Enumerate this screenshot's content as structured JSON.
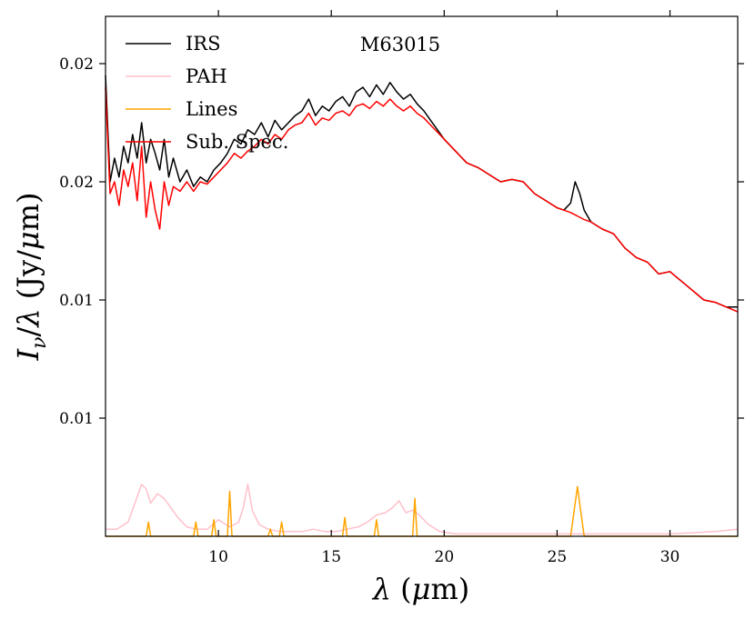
{
  "chart_data": {
    "type": "line",
    "title": "M63015",
    "xlabel": "λ (μm)",
    "ylabel": "Iν/λ (Jy/μm)",
    "xlim": [
      5.0,
      33.0
    ],
    "ylim": [
      0.0,
      0.022
    ],
    "x_ticks": [
      10,
      15,
      20,
      25,
      30
    ],
    "x_tick_labels": [
      "10",
      "15",
      "20",
      "25",
      "30"
    ],
    "y_ticks": [
      0.005,
      0.01,
      0.015,
      0.02
    ],
    "y_tick_labels": [
      "0.01",
      "0.01",
      "0.02",
      "0.02"
    ],
    "legend_position": "top-left",
    "series": [
      {
        "name": "IRS",
        "color": "#000000",
        "x": [
          5.0,
          5.2,
          5.4,
          5.6,
          5.8,
          6.0,
          6.2,
          6.4,
          6.6,
          6.8,
          7.0,
          7.2,
          7.4,
          7.6,
          7.8,
          8.0,
          8.3,
          8.6,
          8.9,
          9.2,
          9.5,
          9.8,
          10.1,
          10.4,
          10.7,
          11.0,
          11.3,
          11.6,
          11.9,
          12.2,
          12.5,
          12.8,
          13.1,
          13.4,
          13.7,
          14.0,
          14.3,
          14.6,
          14.9,
          15.2,
          15.5,
          15.8,
          16.1,
          16.4,
          16.7,
          17.0,
          17.3,
          17.6,
          17.9,
          18.2,
          18.5,
          18.8,
          19.1,
          19.4,
          19.7,
          20.0,
          20.5,
          21.0,
          21.5,
          22.0,
          22.5,
          23.0,
          23.5,
          24.0,
          24.5,
          25.0,
          25.3,
          25.6,
          25.8,
          26.0,
          26.2,
          26.5,
          27.0,
          27.5,
          28.0,
          28.5,
          29.0,
          29.5,
          30.0,
          30.5,
          31.0,
          31.5,
          32.0,
          32.5,
          33.0
        ],
        "y": [
          0.0195,
          0.015,
          0.016,
          0.0152,
          0.0165,
          0.0158,
          0.017,
          0.016,
          0.0175,
          0.0158,
          0.0168,
          0.0162,
          0.0155,
          0.0168,
          0.0152,
          0.016,
          0.015,
          0.0155,
          0.0148,
          0.0152,
          0.015,
          0.0155,
          0.0158,
          0.0162,
          0.0168,
          0.0166,
          0.0172,
          0.017,
          0.0175,
          0.0169,
          0.0176,
          0.0172,
          0.0175,
          0.0178,
          0.018,
          0.0185,
          0.0178,
          0.0182,
          0.018,
          0.0184,
          0.0186,
          0.0182,
          0.0188,
          0.019,
          0.0186,
          0.0191,
          0.0187,
          0.0192,
          0.0188,
          0.0185,
          0.0187,
          0.0183,
          0.018,
          0.0176,
          0.0172,
          0.0168,
          0.0163,
          0.0158,
          0.0156,
          0.0153,
          0.015,
          0.0151,
          0.015,
          0.0145,
          0.0142,
          0.0139,
          0.0138,
          0.0141,
          0.015,
          0.0145,
          0.0138,
          0.0133,
          0.013,
          0.0128,
          0.0122,
          0.0118,
          0.0116,
          0.0111,
          0.0112,
          0.0108,
          0.0104,
          0.01,
          0.0099,
          0.0097,
          0.0097
        ]
      },
      {
        "name": "PAH",
        "color": "#ffc0cb",
        "x": [
          5.0,
          5.5,
          6.0,
          6.3,
          6.6,
          6.8,
          7.0,
          7.3,
          7.6,
          7.9,
          8.2,
          8.6,
          9.0,
          9.5,
          10.0,
          10.5,
          10.9,
          11.1,
          11.3,
          11.5,
          11.8,
          12.2,
          12.7,
          13.2,
          13.7,
          14.2,
          14.7,
          15.2,
          15.7,
          16.2,
          16.6,
          17.0,
          17.4,
          17.7,
          18.0,
          18.3,
          18.6,
          18.9,
          19.3,
          19.8,
          20.5,
          22,
          24,
          26,
          28,
          30,
          32,
          33.0
        ],
        "y": [
          0.0003,
          0.0003,
          0.0006,
          0.0014,
          0.0022,
          0.002,
          0.0014,
          0.0018,
          0.0016,
          0.0012,
          0.0008,
          0.0004,
          0.0003,
          0.0003,
          0.0007,
          0.0004,
          0.0006,
          0.0012,
          0.0022,
          0.0011,
          0.0005,
          0.0003,
          0.0002,
          0.0002,
          0.0002,
          0.0003,
          0.0002,
          0.0002,
          0.0003,
          0.0004,
          0.0006,
          0.0009,
          0.001,
          0.0012,
          0.0015,
          0.001,
          0.0011,
          0.0009,
          0.0005,
          0.0002,
          0.0001,
          0.0001,
          0.0001,
          0.0001,
          0.0001,
          0.0001,
          0.0002,
          0.0003
        ]
      },
      {
        "name": "Lines",
        "color": "#ffa500",
        "x": [
          5.0,
          6.8,
          6.9,
          7.0,
          8.9,
          9.0,
          9.1,
          9.7,
          9.8,
          9.9,
          10.4,
          10.5,
          10.6,
          12.2,
          12.3,
          12.4,
          12.7,
          12.8,
          12.9,
          15.5,
          15.6,
          15.7,
          16.9,
          17.0,
          17.1,
          18.6,
          18.7,
          18.8,
          25.6,
          25.9,
          26.2,
          33.0
        ],
        "y": [
          0.0,
          0.0,
          0.0006,
          0.0,
          0.0,
          0.0006,
          0.0,
          0.0,
          0.0007,
          0.0,
          0.0,
          0.0019,
          0.0,
          0.0,
          0.0003,
          0.0,
          0.0,
          0.0006,
          0.0,
          0.0,
          0.0008,
          0.0,
          0.0,
          0.0007,
          0.0,
          0.0,
          0.0016,
          0.0,
          0.0,
          0.0021,
          0.0,
          0.0
        ]
      },
      {
        "name": "Sub. Spec.",
        "color": "#ff0000",
        "x": [
          5.0,
          5.2,
          5.4,
          5.6,
          5.8,
          6.0,
          6.2,
          6.4,
          6.6,
          6.8,
          7.0,
          7.2,
          7.4,
          7.6,
          7.8,
          8.0,
          8.3,
          8.6,
          8.9,
          9.2,
          9.5,
          9.8,
          10.1,
          10.4,
          10.7,
          11.0,
          11.3,
          11.6,
          11.9,
          12.2,
          12.5,
          12.8,
          13.1,
          13.4,
          13.7,
          14.0,
          14.3,
          14.6,
          14.9,
          15.2,
          15.5,
          15.8,
          16.1,
          16.4,
          16.7,
          17.0,
          17.3,
          17.6,
          17.9,
          18.2,
          18.5,
          18.8,
          19.1,
          19.4,
          19.7,
          20.0,
          20.5,
          21.0,
          21.5,
          22.0,
          22.5,
          23.0,
          23.5,
          24.0,
          24.5,
          25.0,
          25.3,
          25.6,
          25.8,
          26.0,
          26.2,
          26.5,
          27.0,
          27.5,
          28.0,
          28.5,
          29.0,
          29.5,
          30.0,
          30.5,
          31.0,
          31.5,
          32.0,
          32.5,
          33.0
        ],
        "y": [
          0.019,
          0.0145,
          0.015,
          0.014,
          0.0155,
          0.0148,
          0.0158,
          0.0142,
          0.0165,
          0.0135,
          0.015,
          0.0138,
          0.013,
          0.015,
          0.014,
          0.0148,
          0.0146,
          0.015,
          0.0146,
          0.015,
          0.0149,
          0.0152,
          0.0155,
          0.0158,
          0.0162,
          0.016,
          0.0163,
          0.0165,
          0.0168,
          0.0166,
          0.017,
          0.0168,
          0.0172,
          0.0174,
          0.0175,
          0.0179,
          0.0174,
          0.0177,
          0.0176,
          0.0179,
          0.018,
          0.0178,
          0.0182,
          0.0183,
          0.0181,
          0.0184,
          0.0182,
          0.0185,
          0.0182,
          0.018,
          0.0182,
          0.0179,
          0.0177,
          0.0174,
          0.0171,
          0.0168,
          0.0163,
          0.0158,
          0.0156,
          0.0153,
          0.015,
          0.0151,
          0.015,
          0.0145,
          0.0142,
          0.0139,
          0.0138,
          0.0137,
          0.0136,
          0.0135,
          0.0134,
          0.0133,
          0.013,
          0.0128,
          0.0122,
          0.0118,
          0.0116,
          0.0111,
          0.0112,
          0.0108,
          0.0104,
          0.01,
          0.0099,
          0.0097,
          0.0095
        ]
      }
    ]
  }
}
